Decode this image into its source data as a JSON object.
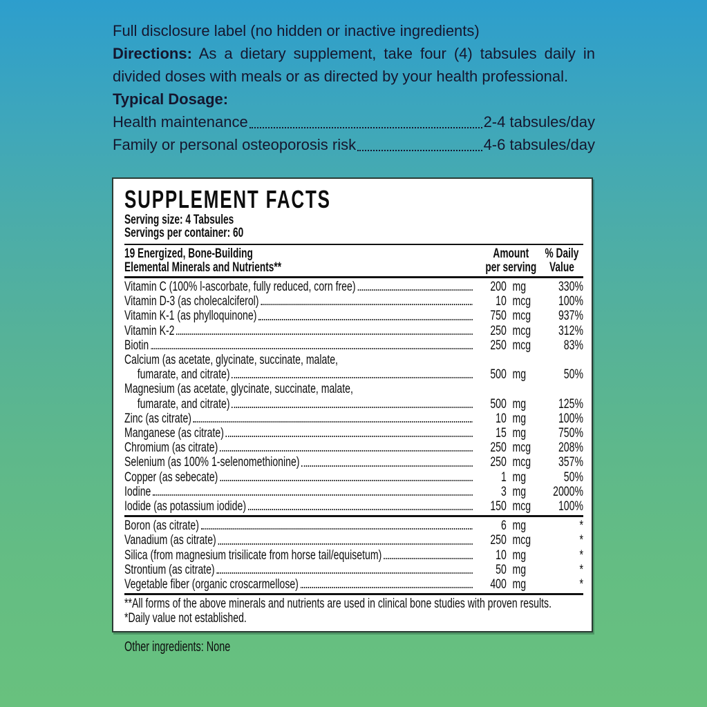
{
  "background": {
    "top_color": "#2d9ecd",
    "bottom_color": "#68c17e"
  },
  "intro": {
    "full_disclosure": "Full disclosure label (no hidden or inactive ingredients)",
    "directions_label": "Directions:",
    "directions_text": " As a dietary supplement, take four (4) tabsules daily in divided doses with meals or as directed by your health professional.",
    "typical_dosage_label": "Typical Dosage:",
    "dosage_rows": [
      {
        "name": "Health maintenance",
        "value": "2-4 tabsules/day"
      },
      {
        "name": "Family or personal osteoporosis risk",
        "value": "4-6 tabsules/day"
      }
    ]
  },
  "panel": {
    "title": "SUPPLEMENT FACTS",
    "serving_size": "Serving size:  4 Tabsules",
    "servings_per_container": "Servings per container:  60",
    "header": {
      "col1_line1": "19 Energized, Bone-Building",
      "col1_line2": "Elemental Minerals and Nutrients**",
      "col2_line1": "Amount",
      "col2_line2": "per serving",
      "col3_line1": "% Daily",
      "col3_line2": "Value"
    },
    "rows": [
      {
        "lines": [
          "Vitamin C (100% l-ascorbate, fully reduced, corn free)"
        ],
        "amount": "200",
        "unit": "mg",
        "dv": "330%"
      },
      {
        "lines": [
          "Vitamin D-3 (as cholecalciferol)"
        ],
        "amount": "10",
        "unit": "mcg",
        "dv": "100%"
      },
      {
        "lines": [
          "Vitamin K-1 (as phylloquinone)"
        ],
        "amount": "750",
        "unit": "mcg",
        "dv": "937%"
      },
      {
        "lines": [
          "Vitamin K-2"
        ],
        "amount": "250",
        "unit": "mcg",
        "dv": "312%"
      },
      {
        "lines": [
          "Biotin"
        ],
        "amount": "250",
        "unit": "mcg",
        "dv": "83%"
      },
      {
        "lines": [
          "Calcium (as acetate, glycinate, succinate, malate,",
          "fumarate, and citrate)"
        ],
        "amount": "500",
        "unit": "mg",
        "dv": "50%"
      },
      {
        "lines": [
          "Magnesium (as acetate, glycinate, succinate, malate,",
          "fumarate, and citrate)"
        ],
        "amount": "500",
        "unit": "mg",
        "dv": "125%"
      },
      {
        "lines": [
          "Zinc (as citrate)"
        ],
        "amount": "10",
        "unit": "mg",
        "dv": "100%"
      },
      {
        "lines": [
          "Manganese (as citrate)"
        ],
        "amount": "15",
        "unit": "mg",
        "dv": "750%"
      },
      {
        "lines": [
          "Chromium (as citrate)"
        ],
        "amount": "250",
        "unit": "mcg",
        "dv": "208%"
      },
      {
        "lines": [
          "Selenium (as 100% 1-selenomethionine)"
        ],
        "amount": "250",
        "unit": "mcg",
        "dv": "357%"
      },
      {
        "lines": [
          "Copper (as sebecate)"
        ],
        "amount": "1",
        "unit": "mg",
        "dv": "50%"
      },
      {
        "lines": [
          "Iodine"
        ],
        "amount": "3",
        "unit": "mg",
        "dv": "2000%"
      },
      {
        "lines": [
          "Iodide (as potassium iodide)"
        ],
        "amount": "150",
        "unit": "mcg",
        "dv": "100%"
      }
    ],
    "rows_no_dv": [
      {
        "lines": [
          "Boron (as citrate)"
        ],
        "amount": "6",
        "unit": "mg",
        "dv": "*"
      },
      {
        "lines": [
          "Vanadium (as citrate)"
        ],
        "amount": "250",
        "unit": "mcg",
        "dv": "*"
      },
      {
        "lines": [
          "Silica (from magnesium trisilicate from horse tail/equisetum)"
        ],
        "amount": "10",
        "unit": "mg",
        "dv": "*"
      },
      {
        "lines": [
          "Strontium (as citrate)"
        ],
        "amount": "50",
        "unit": "mg",
        "dv": "*"
      },
      {
        "lines": [
          "Vegetable fiber (organic croscarmellose)"
        ],
        "amount": "400",
        "unit": "mg",
        "dv": "*"
      }
    ],
    "footnotes": [
      "**All forms of the above minerals and nutrients are used in clinical bone studies with proven results.",
      "*Daily value not established."
    ]
  },
  "other_ingredients": "Other ingredients: None"
}
